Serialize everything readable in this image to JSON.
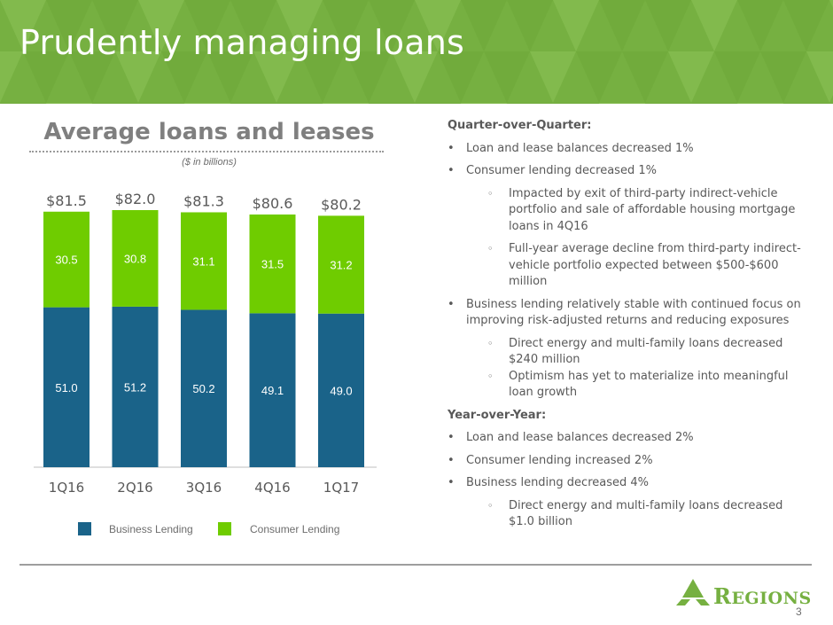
{
  "slide": {
    "title": "Prudently managing loans",
    "page_number": "3"
  },
  "logo": {
    "name": "regions-logo",
    "text_initial": "R",
    "text_rest": "EGIONS",
    "color": "#76b041"
  },
  "colors": {
    "header": "#76b041",
    "business_lending": "#1a6389",
    "consumer_lending": "#6fcc00"
  },
  "chart_data": {
    "type": "bar",
    "stacked": true,
    "title": "Average loans and leases",
    "subtitle": "($ in billions)",
    "categories": [
      "1Q16",
      "2Q16",
      "3Q16",
      "4Q16",
      "1Q17"
    ],
    "series": [
      {
        "name": "Business Lending",
        "values": [
          51.0,
          51.2,
          50.2,
          49.1,
          49.0
        ],
        "labels": [
          "51.0",
          "51.2",
          "50.2",
          "49.1",
          "49.0"
        ],
        "color": "#1a6389"
      },
      {
        "name": "Consumer Lending",
        "values": [
          30.5,
          30.8,
          31.1,
          31.5,
          31.2
        ],
        "labels": [
          "30.5",
          "30.8",
          "31.1",
          "31.5",
          "31.2"
        ],
        "color": "#6fcc00"
      }
    ],
    "totals": [
      "$81.5",
      "$82.0",
      "$81.3",
      "$80.6",
      "$80.2"
    ],
    "ylim": [
      0,
      82
    ],
    "grid": false,
    "legend_position": "bottom"
  },
  "commentary": {
    "qoq_heading": "Quarter-over-Quarter:",
    "qoq_items": [
      {
        "level": 1,
        "text": "Loan and lease balances decreased 1%"
      },
      {
        "level": 1,
        "text": "Consumer lending decreased 1%"
      },
      {
        "level": 2,
        "text": "Impacted by exit of third-party indirect-vehicle portfolio and sale of affordable housing mortgage loans in 4Q16"
      },
      {
        "level": 2,
        "text": "Full-year average decline from third-party indirect-vehicle portfolio expected between $500-$600 million"
      },
      {
        "level": 1,
        "text": "Business lending relatively stable with continued focus on improving risk-adjusted returns and reducing exposures"
      },
      {
        "level": 2,
        "text": "Direct energy and multi-family loans decreased $240 million",
        "tight": true
      },
      {
        "level": 2,
        "text": "Optimism has yet to materialize into meaningful loan growth"
      }
    ],
    "yoy_heading": "Year-over-Year:",
    "yoy_items": [
      {
        "level": 1,
        "text": "Loan and lease balances decreased 2%"
      },
      {
        "level": 1,
        "text": "Consumer lending increased 2%"
      },
      {
        "level": 1,
        "text": "Business lending decreased 4%"
      },
      {
        "level": 2,
        "text": "Direct energy and multi-family loans decreased $1.0 billion"
      }
    ],
    "bullet_level1": "•",
    "bullet_level2": "◦"
  }
}
